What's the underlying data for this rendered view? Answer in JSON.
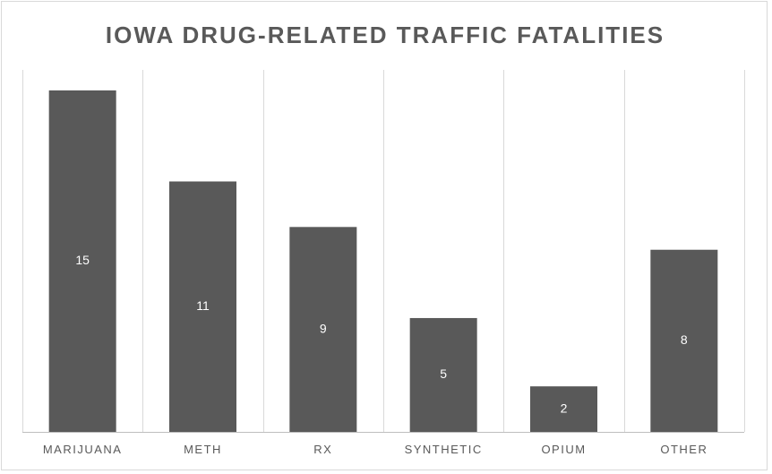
{
  "chart_data": {
    "type": "bar",
    "title": "IOWA DRUG-RELATED TRAFFIC FATALITIES",
    "categories": [
      "MARIJUANA",
      "METH",
      "RX",
      "SYNTHETIC",
      "OPIUM",
      "OTHER"
    ],
    "values": [
      15,
      11,
      9,
      5,
      2,
      8
    ],
    "ylim": [
      0,
      15.9
    ],
    "grid": "vertical category separators",
    "legend": "none",
    "data_labels": "inside bar center",
    "colors": {
      "bar": "#595959",
      "grid": "#d9d9d9",
      "axis": "#bfbfbf",
      "text": "#595959",
      "data_label": "#ffffff"
    }
  }
}
